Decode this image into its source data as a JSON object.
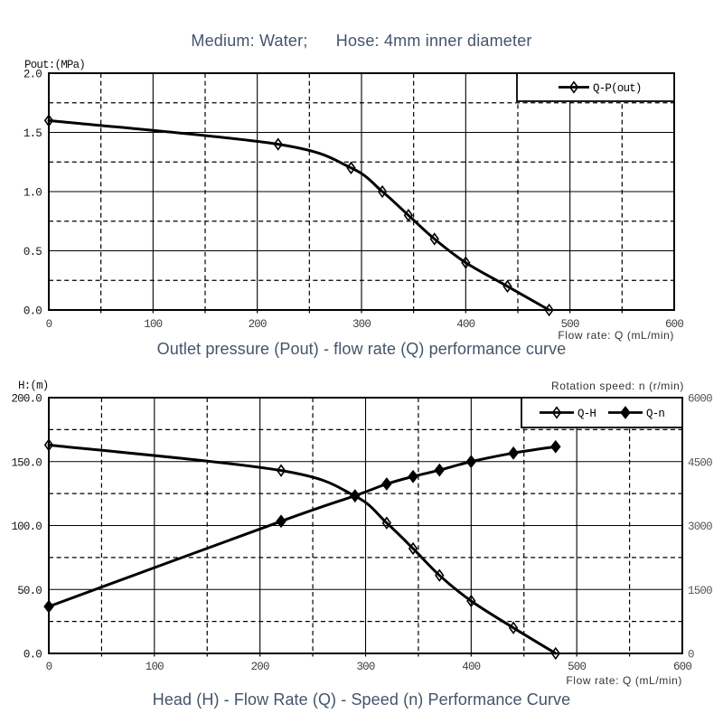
{
  "header": {
    "title": "Medium: Water;      Hose: 4mm inner diameter"
  },
  "chart_data": [
    {
      "type": "line",
      "caption": "Outlet pressure (Pout) - flow rate (Q) performance curve",
      "ylabel": "Pout:(MPa)",
      "xlabel": "Flow rate: Q (mL/min)",
      "xlim": [
        0,
        600
      ],
      "ylim": [
        0,
        2.0
      ],
      "x_tick_values": [
        0,
        100,
        200,
        300,
        400,
        500,
        600
      ],
      "x_tick_labels": [
        "0",
        "100",
        "200",
        "300",
        "400",
        "500",
        "600"
      ],
      "y_tick_values": [
        0,
        0.5,
        1.0,
        1.5,
        2.0
      ],
      "y_tick_labels": [
        "0.0",
        "0.5",
        "1.0",
        "1.5",
        "2.0"
      ],
      "x_minor_step": 50,
      "y_minor_step": 0.25,
      "grid": "major-solid-minor-dashed",
      "legend_position": "top-right-inside",
      "series": [
        {
          "name": "Q-P(out)",
          "marker": "open-diamond",
          "axis": "left",
          "x": [
            0,
            220,
            290,
            320,
            345,
            370,
            400,
            440,
            480
          ],
          "y": [
            1.6,
            1.4,
            1.2,
            1.0,
            0.8,
            0.6,
            0.4,
            0.2,
            0.0
          ]
        }
      ]
    },
    {
      "type": "line",
      "caption": "Head (H) - Flow Rate (Q) - Speed (n) Performance Curve",
      "ylabel": "H:(m)",
      "ylabel_right": "Rotation speed: n (r/min)",
      "xlabel": "Flow rate: Q (mL/min)",
      "xlim": [
        0,
        600
      ],
      "ylim": [
        0,
        200
      ],
      "ylim_right": [
        0,
        6000
      ],
      "x_tick_values": [
        0,
        100,
        200,
        300,
        400,
        500,
        600
      ],
      "x_tick_labels": [
        "0",
        "100",
        "200",
        "300",
        "400",
        "500",
        "600"
      ],
      "y_tick_values": [
        0,
        50,
        100,
        150,
        200
      ],
      "y_tick_labels": [
        "0.0",
        "50.0",
        "100.0",
        "150.0",
        "200.0"
      ],
      "y_right_tick_values": [
        0,
        1500,
        3000,
        4500,
        6000
      ],
      "y_right_tick_labels": [
        "0",
        "1500",
        "3000",
        "4500",
        "6000"
      ],
      "x_minor_step": 50,
      "y_minor_step": 25,
      "grid": "major-solid-minor-dashed",
      "legend_position": "top-right-inside",
      "series": [
        {
          "name": "Q-H",
          "marker": "open-diamond",
          "axis": "left",
          "x": [
            0,
            220,
            290,
            320,
            345,
            370,
            400,
            440,
            480
          ],
          "y": [
            163,
            143,
            123,
            102,
            82,
            61,
            41,
            20,
            0
          ]
        },
        {
          "name": "Q-n",
          "marker": "filled-diamond",
          "axis": "right",
          "x": [
            0,
            220,
            290,
            320,
            345,
            370,
            400,
            440,
            480
          ],
          "y": [
            1100,
            3100,
            3700,
            3975,
            4150,
            4300,
            4500,
            4700,
            4850
          ]
        }
      ]
    }
  ],
  "style": {
    "accent_text_color": "#44546a",
    "curve_color": "#000000",
    "grid_color": "#000000",
    "x_tick_color": "#3f3f3f",
    "y_tick_color": "#141414",
    "y_right_tick_color": "#555555",
    "axis_unit_color": "#333333"
  }
}
